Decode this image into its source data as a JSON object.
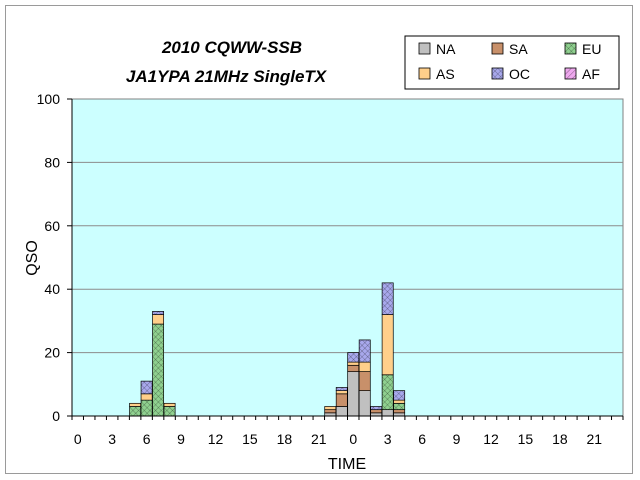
{
  "chart_data": {
    "type": "bar",
    "stacked": true,
    "title_lines": [
      "2010 CQWW-SSB",
      "JA1YPA  21MHz  SingleTX"
    ],
    "xlabel": "TIME",
    "ylabel": "QSO",
    "ylim": [
      0,
      100
    ],
    "yticks": [
      0,
      20,
      40,
      60,
      80,
      100
    ],
    "grid": true,
    "legend_position": "top-right",
    "x_tick_labels": [
      "0",
      "3",
      "6",
      "9",
      "12",
      "15",
      "18",
      "21",
      "0",
      "3",
      "6",
      "9",
      "12",
      "15",
      "18",
      "21"
    ],
    "hours": 48,
    "series": [
      {
        "name": "NA",
        "color": "#c0c0c0",
        "values": [
          0,
          0,
          0,
          0,
          0,
          0,
          0,
          0,
          0,
          0,
          0,
          0,
          0,
          0,
          0,
          0,
          0,
          0,
          0,
          0,
          0,
          0,
          1,
          3,
          14,
          8,
          1,
          2,
          1,
          0,
          0,
          0,
          0,
          0,
          0,
          0,
          0,
          0,
          0,
          0,
          0,
          0,
          0,
          0,
          0,
          0,
          0,
          0
        ]
      },
      {
        "name": "SA",
        "color": "#c8906a",
        "values": [
          0,
          0,
          0,
          0,
          0,
          0,
          0,
          0,
          0,
          0,
          0,
          0,
          0,
          0,
          0,
          0,
          0,
          0,
          0,
          0,
          0,
          0,
          1,
          4,
          2,
          6,
          1,
          0,
          1,
          0,
          0,
          0,
          0,
          0,
          0,
          0,
          0,
          0,
          0,
          0,
          0,
          0,
          0,
          0,
          0,
          0,
          0,
          0
        ]
      },
      {
        "name": "EU",
        "color": "#8fd08f",
        "values": [
          0,
          0,
          0,
          0,
          0,
          3,
          5,
          29,
          3,
          0,
          0,
          0,
          0,
          0,
          0,
          0,
          0,
          0,
          0,
          0,
          0,
          0,
          0,
          0,
          0,
          0,
          0,
          11,
          2,
          0,
          0,
          0,
          0,
          0,
          0,
          0,
          0,
          0,
          0,
          0,
          0,
          0,
          0,
          0,
          0,
          0,
          0,
          0
        ]
      },
      {
        "name": "AS",
        "color": "#ffcf8a",
        "values": [
          0,
          0,
          0,
          0,
          0,
          1,
          2,
          3,
          1,
          0,
          0,
          0,
          0,
          0,
          0,
          0,
          0,
          0,
          0,
          0,
          0,
          0,
          1,
          1,
          1,
          3,
          0,
          19,
          1,
          0,
          0,
          0,
          0,
          0,
          0,
          0,
          0,
          0,
          0,
          0,
          0,
          0,
          0,
          0,
          0,
          0,
          0,
          0
        ]
      },
      {
        "name": "OC",
        "color": "#a8a8ec",
        "values": [
          0,
          0,
          0,
          0,
          0,
          0,
          4,
          1,
          0,
          0,
          0,
          0,
          0,
          0,
          0,
          0,
          0,
          0,
          0,
          0,
          0,
          0,
          0,
          1,
          3,
          7,
          1,
          10,
          3,
          0,
          0,
          0,
          0,
          0,
          0,
          0,
          0,
          0,
          0,
          0,
          0,
          0,
          0,
          0,
          0,
          0,
          0,
          0
        ]
      },
      {
        "name": "AF",
        "color": "#eea8ee",
        "values": [
          0,
          0,
          0,
          0,
          0,
          0,
          0,
          0,
          0,
          0,
          0,
          0,
          0,
          0,
          0,
          0,
          0,
          0,
          0,
          0,
          0,
          0,
          0,
          0,
          0,
          0,
          0,
          0,
          0,
          0,
          0,
          0,
          0,
          0,
          0,
          0,
          0,
          0,
          0,
          0,
          0,
          0,
          0,
          0,
          0,
          0,
          0,
          0
        ]
      }
    ]
  }
}
